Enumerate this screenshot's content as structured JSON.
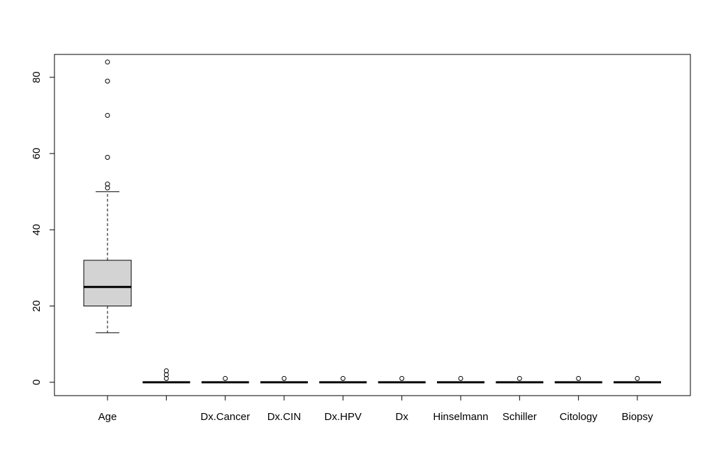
{
  "chart_data": {
    "type": "boxplot",
    "title": "",
    "xlabel": "",
    "ylabel": "",
    "ylim": [
      -3.5,
      86
    ],
    "yticks": [
      0,
      20,
      40,
      60,
      80
    ],
    "grid": false,
    "box_fill": "#d3d3d3",
    "series": [
      {
        "category": "Age",
        "min": 13,
        "q1": 20,
        "median": 25,
        "q3": 32,
        "max": 50,
        "outliers": [
          51,
          52,
          59,
          70,
          79,
          84
        ]
      },
      {
        "category": "",
        "min": 0,
        "q1": 0,
        "median": 0,
        "q3": 0,
        "max": 0,
        "outliers": [
          1,
          2,
          3
        ]
      },
      {
        "category": "Dx.Cancer",
        "min": 0,
        "q1": 0,
        "median": 0,
        "q3": 0,
        "max": 0,
        "outliers": [
          1
        ]
      },
      {
        "category": "Dx.CIN",
        "min": 0,
        "q1": 0,
        "median": 0,
        "q3": 0,
        "max": 0,
        "outliers": [
          1
        ]
      },
      {
        "category": "Dx.HPV",
        "min": 0,
        "q1": 0,
        "median": 0,
        "q3": 0,
        "max": 0,
        "outliers": [
          1
        ]
      },
      {
        "category": "Dx",
        "min": 0,
        "q1": 0,
        "median": 0,
        "q3": 0,
        "max": 0,
        "outliers": [
          1
        ]
      },
      {
        "category": "Hinselmann",
        "min": 0,
        "q1": 0,
        "median": 0,
        "q3": 0,
        "max": 0,
        "outliers": [
          1
        ]
      },
      {
        "category": "Schiller",
        "min": 0,
        "q1": 0,
        "median": 0,
        "q3": 0,
        "max": 0,
        "outliers": [
          1
        ]
      },
      {
        "category": "Citology",
        "min": 0,
        "q1": 0,
        "median": 0,
        "q3": 0,
        "max": 0,
        "outliers": [
          1
        ]
      },
      {
        "category": "Biopsy",
        "min": 0,
        "q1": 0,
        "median": 0,
        "q3": 0,
        "max": 0,
        "outliers": [
          1
        ]
      }
    ]
  }
}
